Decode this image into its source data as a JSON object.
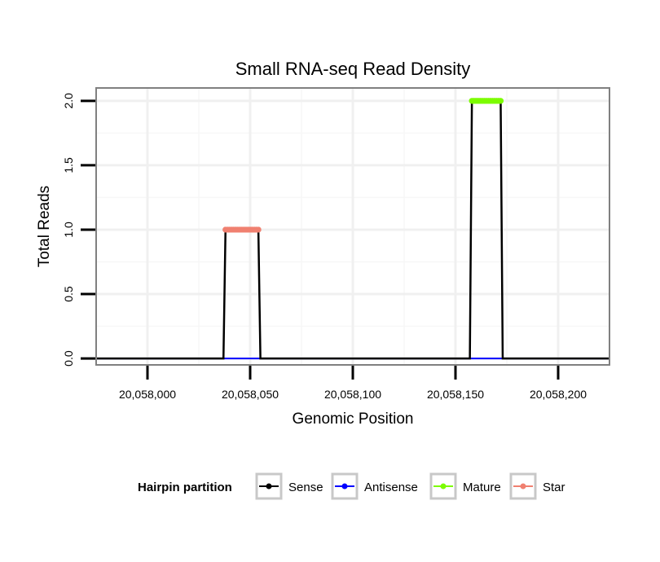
{
  "chart_data": {
    "type": "line",
    "title": "Small RNA-seq Read Density",
    "xlabel": "Genomic Position",
    "ylabel": "Total Reads",
    "xlim": [
      20057975,
      20058225
    ],
    "ylim": [
      -0.05,
      2.1
    ],
    "x_ticks": [
      20058000,
      20058050,
      20058100,
      20058150,
      20058200
    ],
    "x_tick_labels": [
      "20,058,000",
      "20,058,050",
      "20,058,100",
      "20,058,150",
      "20,058,200"
    ],
    "y_ticks": [
      0.0,
      0.5,
      1.0,
      1.5,
      2.0
    ],
    "y_tick_labels": [
      "0.0",
      "0.5",
      "1.0",
      "1.5",
      "2.0"
    ],
    "grid": true,
    "legend": {
      "title": "Hairpin partition",
      "position": "bottom",
      "entries": [
        "Sense",
        "Antisense",
        "Mature",
        "Star"
      ]
    },
    "series": [
      {
        "name": "Sense",
        "color": "#000000",
        "x": [
          20057975,
          20058037,
          20058038,
          20058054,
          20058055,
          20058157,
          20058158,
          20058172,
          20058173,
          20058225
        ],
        "y": [
          0,
          0,
          1,
          1,
          0,
          0,
          2,
          2,
          0,
          0
        ]
      },
      {
        "name": "Antisense",
        "color": "#0000ff",
        "x": [
          20057975,
          20058225
        ],
        "y": [
          0,
          0
        ]
      },
      {
        "name": "Mature",
        "color": "#7cfc00",
        "x": [
          20058158,
          20058172
        ],
        "y": [
          2,
          2
        ]
      },
      {
        "name": "Star",
        "color": "#f08070",
        "x": [
          20058038,
          20058054
        ],
        "y": [
          1,
          1
        ]
      }
    ]
  }
}
